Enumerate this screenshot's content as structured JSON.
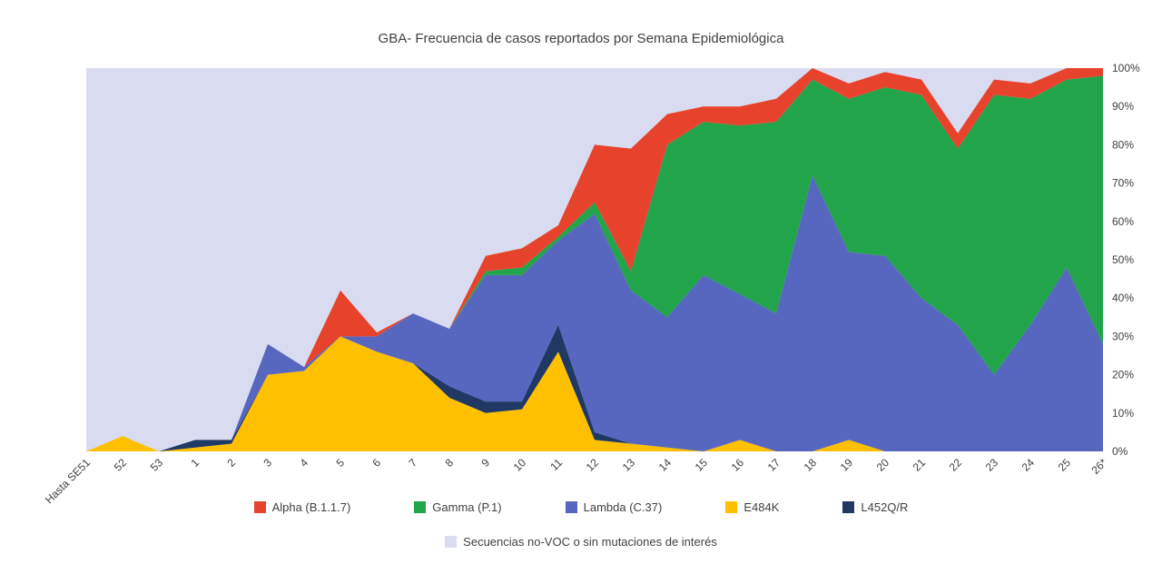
{
  "chart_data": {
    "type": "area",
    "stacking": "percent",
    "title": "GBA- Frecuencia de casos reportados por Semana Epidemiológica",
    "xlabel": "",
    "ylabel": "",
    "grid": false,
    "legend_position": "bottom",
    "categories": [
      "Hasta SE51",
      "52",
      "53",
      "1",
      "2",
      "3",
      "4",
      "5",
      "6",
      "7",
      "8",
      "9",
      "10",
      "11",
      "12",
      "13",
      "14",
      "15",
      "16",
      "17",
      "18",
      "19",
      "20",
      "21",
      "22",
      "23",
      "24",
      "25",
      "26*"
    ],
    "series": [
      {
        "key": "e484k",
        "name": "E484K",
        "color": "#FFC000",
        "values": [
          0,
          4,
          0,
          1,
          2,
          20,
          21,
          30,
          26,
          23,
          14,
          10,
          11,
          26,
          3,
          2,
          1,
          0,
          3,
          0,
          0,
          3,
          0,
          0,
          0,
          0,
          0,
          0,
          0
        ]
      },
      {
        "key": "l452qr",
        "name": "L452Q/R",
        "color": "#1F3864",
        "values": [
          0,
          0,
          0,
          2,
          1,
          0,
          0,
          0,
          0,
          0,
          3,
          3,
          2,
          7,
          2,
          0,
          0,
          0,
          0,
          0,
          0,
          0,
          0,
          0,
          0,
          0,
          0,
          0,
          0
        ]
      },
      {
        "key": "lambda",
        "name": "Lambda (C.37)",
        "color": "#5767C0",
        "values": [
          0,
          0,
          0,
          0,
          0,
          8,
          1,
          0,
          4,
          13,
          15,
          33,
          33,
          22,
          57,
          40,
          34,
          46,
          38,
          36,
          72,
          49,
          51,
          40,
          33,
          20,
          33,
          48,
          28
        ]
      },
      {
        "key": "gamma",
        "name": "Gamma (P.1)",
        "color": "#22A44B",
        "values": [
          0,
          0,
          0,
          0,
          0,
          0,
          0,
          0,
          0,
          0,
          0,
          1,
          2,
          1,
          3,
          5,
          45,
          40,
          44,
          50,
          25,
          40,
          44,
          53,
          46,
          73,
          59,
          49,
          70
        ]
      },
      {
        "key": "alpha",
        "name": "Alpha (B.1.1.7)",
        "color": "#E7432C",
        "values": [
          0,
          0,
          0,
          0,
          0,
          0,
          0,
          12,
          1,
          0,
          0,
          4,
          5,
          3,
          15,
          32,
          8,
          4,
          5,
          6,
          3,
          4,
          4,
          4,
          4,
          4,
          4,
          3,
          2
        ]
      }
    ],
    "background_series": {
      "key": "no-voc",
      "name": "Secuencias no-VOC o sin mutaciones de interés",
      "color": "#D9DCF1"
    },
    "y_axis": {
      "min": 0,
      "max": 100,
      "step": 10,
      "position": "right",
      "tick_labels": [
        "0%",
        "10%",
        "20%",
        "30%",
        "40%",
        "50%",
        "60%",
        "70%",
        "80%",
        "90%",
        "100%"
      ]
    },
    "legend": {
      "row1": [
        {
          "key": "alpha",
          "label": "Alpha (B.1.1.7)",
          "color": "#E7432C"
        },
        {
          "key": "gamma",
          "label": "Gamma (P.1)",
          "color": "#22A44B"
        },
        {
          "key": "lambda",
          "label": "Lambda (C.37)",
          "color": "#5767C0"
        },
        {
          "key": "e484k",
          "label": "E484K",
          "color": "#FFC000"
        },
        {
          "key": "l452qr",
          "label": "L452Q/R",
          "color": "#1F3864"
        }
      ],
      "row2": [
        {
          "key": "no-voc",
          "label": "Secuencias no-VOC o sin mutaciones de interés",
          "color": "#D9DCF1"
        }
      ]
    }
  }
}
